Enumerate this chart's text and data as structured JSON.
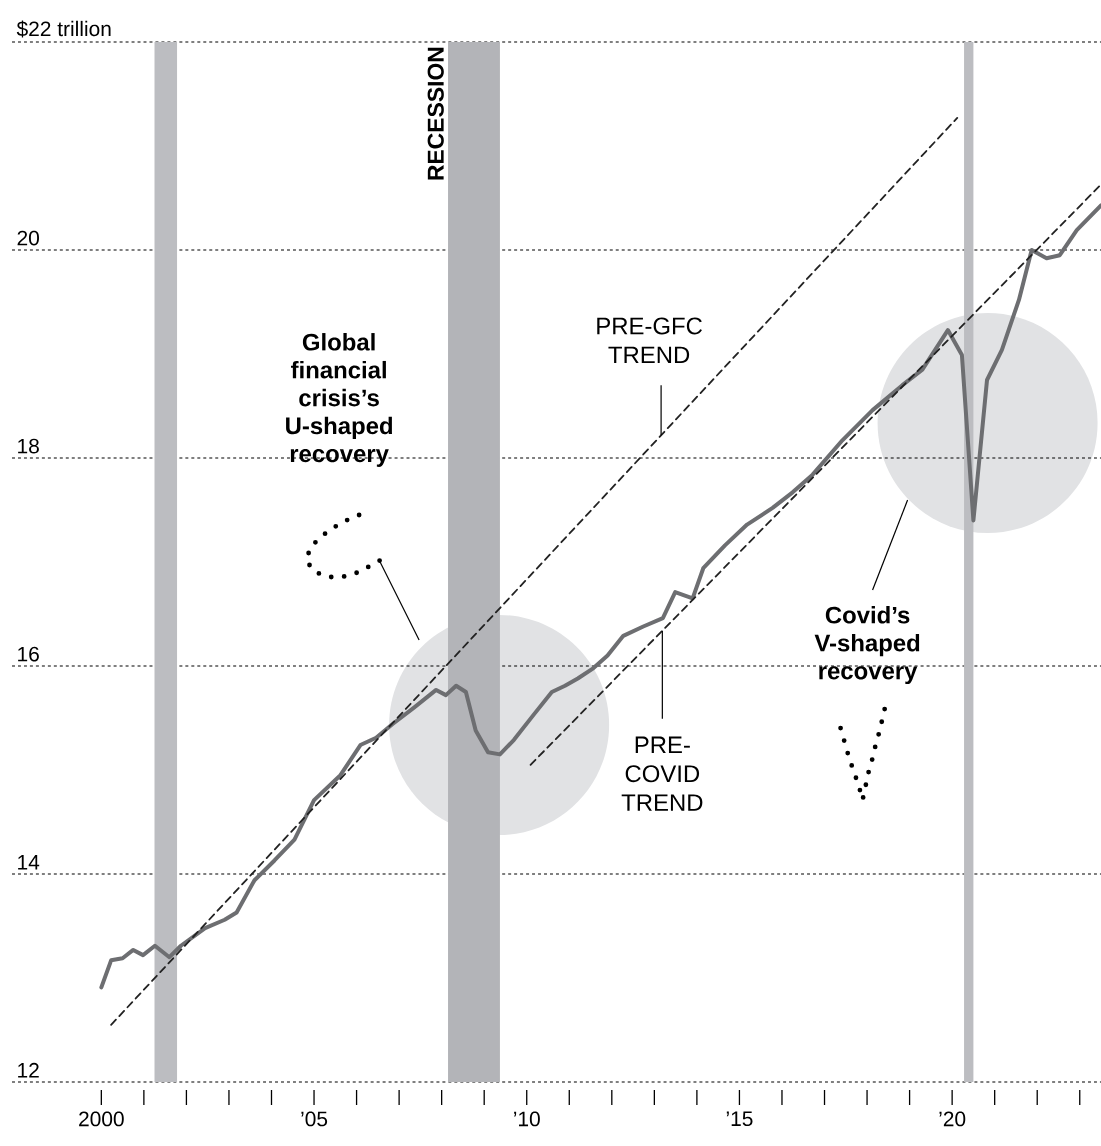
{
  "chart_data": {
    "type": "line",
    "x": [
      2000.0,
      2000.23,
      2000.5,
      2000.75,
      2000.98,
      2001.26,
      2001.6,
      2001.87,
      2002.44,
      2002.9,
      2003.18,
      2003.6,
      2004.07,
      2004.54,
      2005.0,
      2005.62,
      2006.09,
      2006.46,
      2006.84,
      2007.35,
      2007.87,
      2008.1,
      2008.34,
      2008.57,
      2008.8,
      2009.09,
      2009.37,
      2009.7,
      2010.16,
      2010.59,
      2010.9,
      2011.2,
      2011.57,
      2011.9,
      2012.27,
      2012.74,
      2013.2,
      2013.49,
      2013.9,
      2014.15,
      2014.66,
      2015.18,
      2015.78,
      2016.25,
      2016.72,
      2017.42,
      2018.13,
      2018.83,
      2019.3,
      2019.9,
      2020.23,
      2020.5,
      2020.82,
      2021.17,
      2021.57,
      2021.87,
      2022.22,
      2022.53,
      2022.93,
      2023.5
    ],
    "series": [
      {
        "color": "#6d6e71",
        "values": [
          12.91,
          13.17,
          13.19,
          13.27,
          13.22,
          13.31,
          13.2,
          13.31,
          13.48,
          13.56,
          13.63,
          13.94,
          14.13,
          14.33,
          14.71,
          14.95,
          15.24,
          15.31,
          15.44,
          15.6,
          15.77,
          15.72,
          15.81,
          15.75,
          15.38,
          15.17,
          15.15,
          15.29,
          15.53,
          15.75,
          15.81,
          15.88,
          15.98,
          16.1,
          16.29,
          16.38,
          16.46,
          16.71,
          16.65,
          16.94,
          17.16,
          17.36,
          17.52,
          17.67,
          17.84,
          18.17,
          18.46,
          18.7,
          18.85,
          19.23,
          18.99,
          17.4,
          18.75,
          19.04,
          19.52,
          20.0,
          19.92,
          19.95,
          20.19,
          20.43
        ]
      },
      {
        "name": "PRE-GFC TREND",
        "color": "#222222",
        "line_style": "dashed",
        "x": [
          2000.23,
          2020.12
        ],
        "values": [
          12.55,
          21.27
        ]
      },
      {
        "name": "PRE-COVID TREND",
        "color": "#222222",
        "line_style": "dashed",
        "x": [
          2010.09,
          2023.5
        ],
        "values": [
          15.05,
          20.63
        ]
      }
    ],
    "xlim": [
      1997.9,
      2023.5
    ],
    "ylim": [
      12,
      22
    ],
    "xticks": [
      {
        "value": 2000,
        "label": "2000"
      },
      {
        "value": 2001,
        "label": null
      },
      {
        "value": 2002,
        "label": null
      },
      {
        "value": 2003,
        "label": null
      },
      {
        "value": 2004,
        "label": null
      },
      {
        "value": 2005,
        "label": "’05"
      },
      {
        "value": 2006,
        "label": null
      },
      {
        "value": 2007,
        "label": null
      },
      {
        "value": 2008,
        "label": null
      },
      {
        "value": 2009,
        "label": null
      },
      {
        "value": 2010,
        "label": "’10"
      },
      {
        "value": 2011,
        "label": null
      },
      {
        "value": 2012,
        "label": null
      },
      {
        "value": 2013,
        "label": null
      },
      {
        "value": 2014,
        "label": null
      },
      {
        "value": 2015,
        "label": "’15"
      },
      {
        "value": 2016,
        "label": null
      },
      {
        "value": 2017,
        "label": null
      },
      {
        "value": 2018,
        "label": null
      },
      {
        "value": 2019,
        "label": null
      },
      {
        "value": 2020,
        "label": "’20"
      },
      {
        "value": 2021,
        "label": null
      },
      {
        "value": 2022,
        "label": null
      },
      {
        "value": 2023,
        "label": null
      }
    ],
    "yticks": [
      12,
      14,
      16,
      18,
      20,
      {
        "value": 22,
        "label": "$22 trillion"
      }
    ],
    "grid": "y",
    "bands": [
      {
        "axis": "x",
        "from": 2001.25,
        "to": 2001.78,
        "color": "#bcbdc1"
      },
      {
        "axis": "x",
        "from": 2008.15,
        "to": 2009.37,
        "color": "#b3b4b8",
        "label": "RECESSION"
      },
      {
        "axis": "x",
        "from": 2020.28,
        "to": 2020.5,
        "color": "#bcbdc1"
      }
    ],
    "annotations": [
      "Global financial crisis’s U-shaped recovery",
      "Covid’s V-shaped recovery"
    ]
  }
}
